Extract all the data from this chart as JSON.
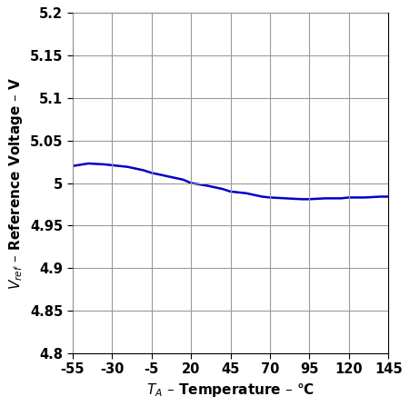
{
  "title": "",
  "xlabel": "$T_A$ – Temperature – °C",
  "ylabel": "$V_{ref}$ – Reference Voltage – V",
  "xlim": [
    -55,
    145
  ],
  "ylim": [
    4.8,
    5.2
  ],
  "xticks": [
    -55,
    -30,
    -5,
    20,
    45,
    70,
    95,
    120,
    145
  ],
  "yticks": [
    4.8,
    4.85,
    4.9,
    4.95,
    5.0,
    5.05,
    5.1,
    5.15,
    5.2
  ],
  "ytick_labels": [
    "4.8",
    "4.85",
    "4.9",
    "4.95",
    "5",
    "5.05",
    "5.1",
    "5.15",
    "5.2"
  ],
  "line_color": "#0000cc",
  "line_width": 1.8,
  "grid_color": "#999999",
  "x_data": [
    -55,
    -45,
    -35,
    -30,
    -20,
    -10,
    -5,
    5,
    15,
    20,
    30,
    40,
    45,
    55,
    65,
    70,
    80,
    90,
    95,
    105,
    115,
    120,
    130,
    140,
    145
  ],
  "y_data": [
    5.02,
    5.023,
    5.022,
    5.021,
    5.019,
    5.015,
    5.012,
    5.008,
    5.004,
    5.0,
    4.997,
    4.993,
    4.99,
    4.988,
    4.984,
    4.983,
    4.982,
    4.981,
    4.981,
    4.982,
    4.982,
    4.983,
    4.983,
    4.984,
    4.984
  ],
  "background_color": "#ffffff",
  "ylabel_fontsize": 11,
  "xlabel_fontsize": 11,
  "tick_fontsize": 10.5,
  "label_fontweight": "bold"
}
